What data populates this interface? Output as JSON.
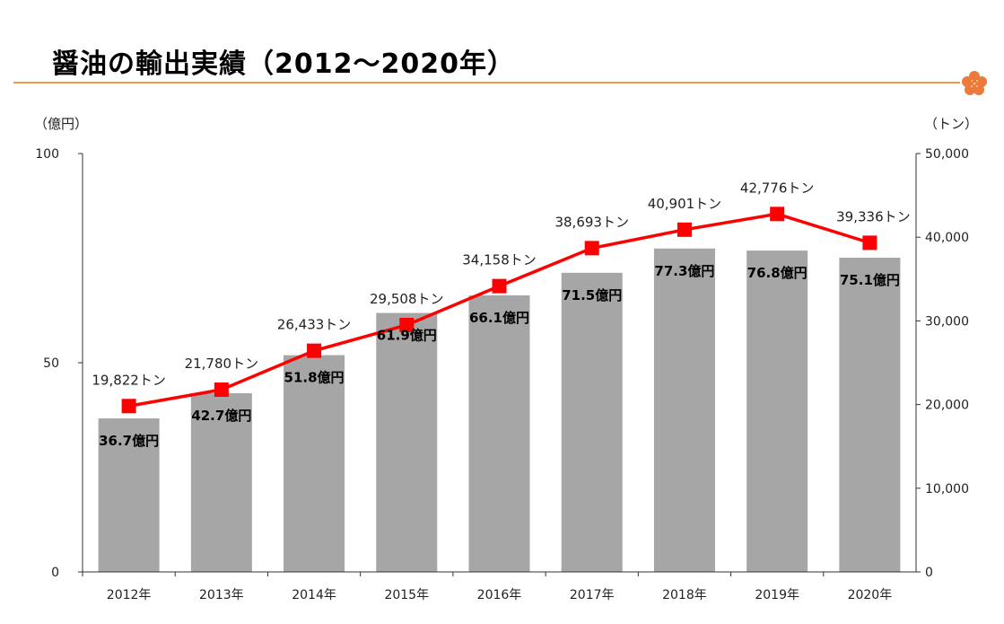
{
  "title": "醤油の輸出実績（2012〜2020年）",
  "chart_data": {
    "type": "bar+line",
    "categories": [
      "2012年",
      "2013年",
      "2014年",
      "2015年",
      "2016年",
      "2017年",
      "2018年",
      "2019年",
      "2020年"
    ],
    "series": [
      {
        "type": "bar",
        "axis": "left",
        "values": [
          36.7,
          42.7,
          51.8,
          61.9,
          66.1,
          71.5,
          77.3,
          76.8,
          75.1
        ],
        "labels": [
          "36.7億円",
          "42.7億円",
          "51.8億円",
          "61.9億円",
          "66.1億円",
          "71.5億円",
          "77.3億円",
          "76.8億円",
          "75.1億円"
        ],
        "color": "#a6a6a6"
      },
      {
        "type": "line",
        "axis": "right",
        "values": [
          19822,
          21780,
          26433,
          29508,
          34158,
          38693,
          40901,
          42776,
          39336
        ],
        "labels": [
          "19,822トン",
          "21,780トン",
          "26,433トン",
          "29,508トン",
          "34,158トン",
          "38,693トン",
          "40,901トン",
          "42,776トン",
          "39,336トン"
        ],
        "color": "#ff0000",
        "marker": "square"
      }
    ],
    "left_axis": {
      "label": "（億円）",
      "ylim": [
        0,
        100
      ],
      "ticks": [
        "0",
        "50",
        "100"
      ]
    },
    "right_axis": {
      "label": "（トン）",
      "ylim": [
        0,
        50000
      ],
      "ticks": [
        "0",
        "10,000",
        "20,000",
        "30,000",
        "40,000",
        "50,000"
      ]
    },
    "grid": false,
    "legend": "none"
  },
  "colors": {
    "accent_rule": "#f79646",
    "flower": "#ec7a3c"
  }
}
